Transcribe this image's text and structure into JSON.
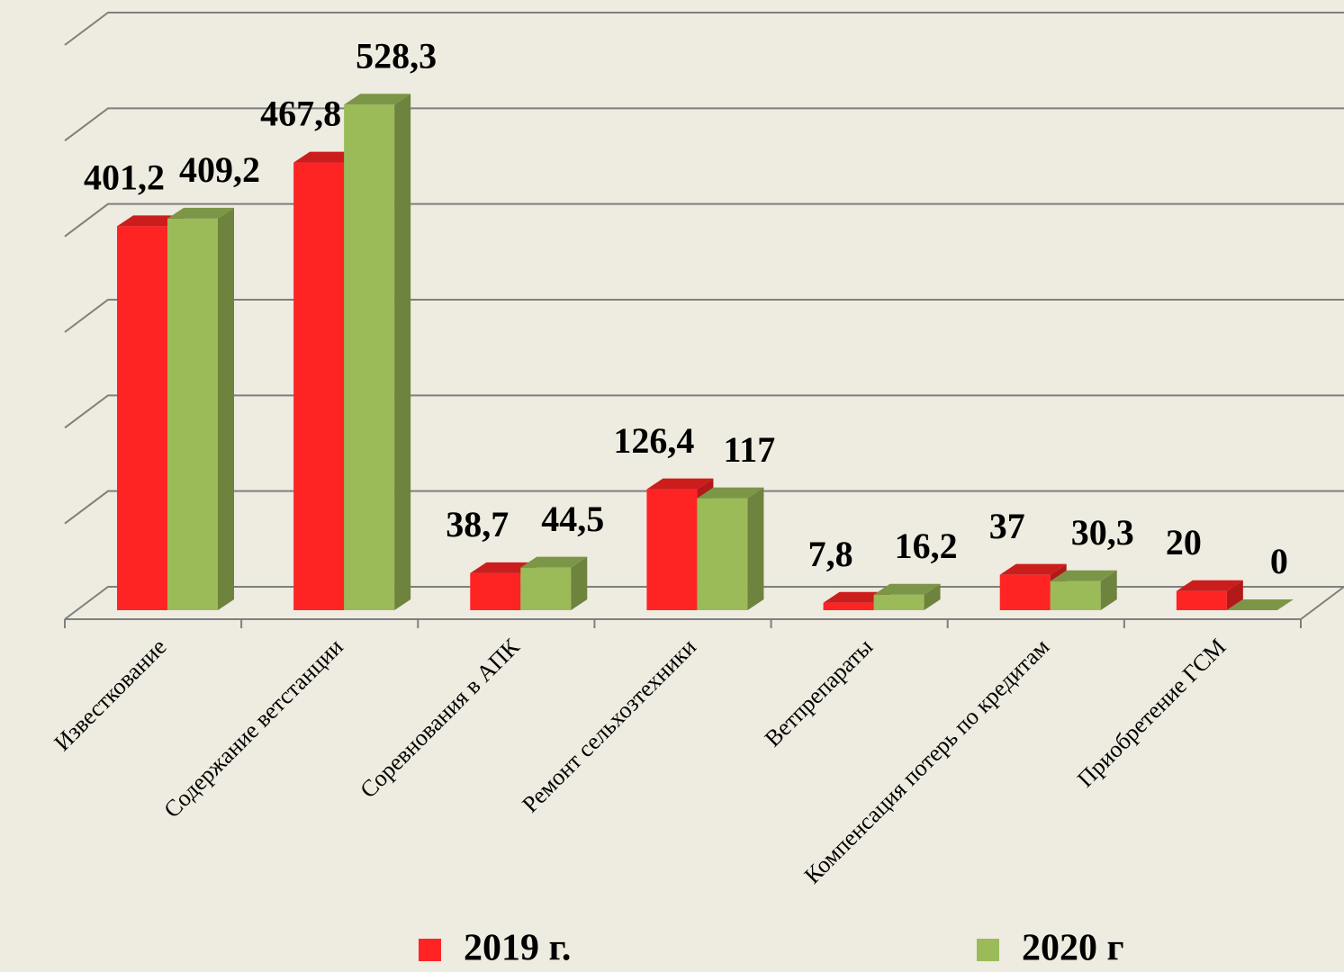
{
  "chart_data": {
    "type": "bar3d",
    "categories": [
      "Известкование",
      "Содержание ветстанции",
      "Соревнования в АПК",
      "Ремонт сельхозтехники",
      "Ветпрепараты",
      "Компенсация потерь по кредитам",
      "Приобретение ГСМ"
    ],
    "series": [
      {
        "name": "2019 г.",
        "color": "#ff2424",
        "values": [
          401.2,
          467.8,
          38.7,
          126.4,
          7.8,
          37,
          20
        ],
        "value_labels": [
          "401,2",
          "467,8",
          "38,7",
          "126,4",
          "7,8",
          "37",
          "20"
        ]
      },
      {
        "name": "2020 г",
        "color": "#9bbb59",
        "values": [
          409.2,
          528.3,
          44.5,
          117,
          16.2,
          30.3,
          0
        ],
        "value_labels": [
          "409,2",
          "528,3",
          "44,5",
          "117",
          "16,2",
          "30,3",
          "0"
        ]
      }
    ],
    "ylim": [
      0,
      600
    ],
    "yticks": [
      0,
      100,
      200,
      300,
      400,
      500,
      600
    ],
    "grid": true,
    "legend": "bottom"
  }
}
